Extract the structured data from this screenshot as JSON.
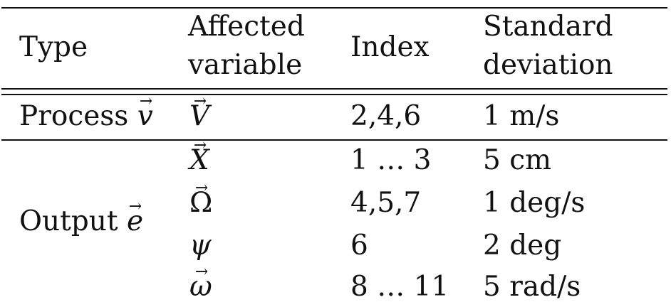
{
  "table": {
    "headers": {
      "type": "Type",
      "affected_line1": "Affected",
      "affected_line2": "variable",
      "index": "Index",
      "std_line1": "Standard",
      "std_line2": "deviation"
    },
    "process": {
      "type_text": "Process",
      "type_symbol": "v",
      "variable": "V",
      "index": "2,4,6",
      "std": "1 m/s"
    },
    "output": {
      "type_text": "Output",
      "type_symbol": "e",
      "rows": [
        {
          "variable": "X",
          "index": "1 … 3",
          "std": "5 cm"
        },
        {
          "variable": "Ω",
          "index": "4,5,7",
          "std": "1 deg/s"
        },
        {
          "variable": "ψ",
          "index": "6",
          "std": "2 deg"
        },
        {
          "variable": "ω",
          "index": "8 … 11",
          "std": "5 rad/s"
        }
      ]
    }
  }
}
